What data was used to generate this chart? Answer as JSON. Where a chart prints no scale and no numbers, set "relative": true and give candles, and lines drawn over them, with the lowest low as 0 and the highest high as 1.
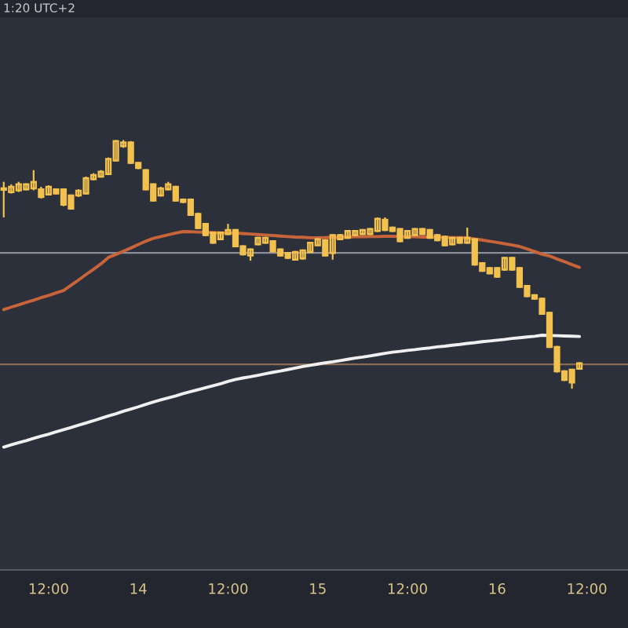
{
  "chart_data": {
    "type": "candlestick",
    "relative": true,
    "annotations": [
      "1:20 UTC+2"
    ],
    "categories": [
      null,
      null,
      null,
      null,
      null,
      null,
      "12:00",
      null,
      null,
      null,
      null,
      null,
      null,
      null,
      null,
      null,
      null,
      null,
      "14",
      null,
      null,
      null,
      null,
      null,
      null,
      null,
      null,
      null,
      null,
      null,
      "12:00",
      null,
      null,
      null,
      null,
      null,
      null,
      null,
      null,
      null,
      null,
      null,
      "15",
      null,
      null,
      null,
      null,
      null,
      null,
      null,
      null,
      null,
      null,
      null,
      "12:00",
      null,
      null,
      null,
      null,
      null,
      null,
      null,
      null,
      null,
      null,
      null,
      "16",
      null,
      null,
      null,
      null,
      null,
      null,
      null,
      null,
      null,
      null,
      null,
      "12:00",
      null,
      null,
      null,
      null,
      null
    ],
    "color": "#f2c14e",
    "ohlc": [
      [
        0.8,
        0.832,
        0.689,
        0.806
      ],
      [
        0.791,
        0.822,
        0.785,
        0.812
      ],
      [
        0.798,
        0.832,
        0.791,
        0.822
      ],
      [
        0.802,
        0.826,
        0.798,
        0.822
      ],
      [
        0.806,
        0.879,
        0.798,
        0.832
      ],
      [
        0.802,
        0.812,
        0.765,
        0.771
      ],
      [
        0.781,
        0.818,
        0.777,
        0.812
      ],
      [
        0.802,
        0.806,
        0.781,
        0.785
      ],
      [
        0.802,
        0.806,
        0.734,
        0.74
      ],
      [
        0.777,
        0.781,
        0.72,
        0.724
      ],
      [
        0.777,
        0.802,
        0.771,
        0.796
      ],
      [
        0.785,
        0.853,
        0.781,
        0.847
      ],
      [
        0.843,
        0.867,
        0.838,
        0.859
      ],
      [
        0.853,
        0.879,
        0.849,
        0.873
      ],
      [
        0.863,
        0.93,
        0.859,
        0.924
      ],
      [
        0.918,
        1.0,
        0.914,
        0.996
      ],
      [
        0.975,
        1.0,
        0.969,
        0.99
      ],
      [
        0.99,
        0.996,
        0.904,
        0.908
      ],
      [
        0.908,
        0.912,
        0.883,
        0.888
      ],
      [
        0.879,
        0.883,
        0.798,
        0.802
      ],
      [
        0.822,
        0.826,
        0.753,
        0.757
      ],
      [
        0.777,
        0.812,
        0.773,
        0.806
      ],
      [
        0.802,
        0.832,
        0.798,
        0.822
      ],
      [
        0.812,
        0.816,
        0.753,
        0.757
      ],
      [
        0.761,
        0.765,
        0.746,
        0.751
      ],
      [
        0.761,
        0.765,
        0.695,
        0.699
      ],
      [
        0.703,
        0.708,
        0.642,
        0.646
      ],
      [
        0.663,
        0.667,
        0.613,
        0.618
      ],
      [
        0.628,
        0.632,
        0.583,
        0.587
      ],
      [
        0.601,
        0.632,
        0.597,
        0.628
      ],
      [
        0.622,
        0.663,
        0.618,
        0.638
      ],
      [
        0.638,
        0.642,
        0.569,
        0.573
      ],
      [
        0.573,
        0.577,
        0.536,
        0.54
      ],
      [
        0.536,
        0.564,
        0.515,
        0.56
      ],
      [
        0.581,
        0.611,
        0.577,
        0.607
      ],
      [
        0.587,
        0.611,
        0.583,
        0.607
      ],
      [
        0.593,
        0.597,
        0.548,
        0.552
      ],
      [
        0.56,
        0.564,
        0.532,
        0.536
      ],
      [
        0.546,
        0.55,
        0.521,
        0.526
      ],
      [
        0.519,
        0.554,
        0.515,
        0.55
      ],
      [
        0.524,
        0.56,
        0.519,
        0.556
      ],
      [
        0.55,
        0.591,
        0.546,
        0.587
      ],
      [
        0.577,
        0.605,
        0.573,
        0.601
      ],
      [
        0.597,
        0.601,
        0.532,
        0.536
      ],
      [
        0.546,
        0.622,
        0.519,
        0.618
      ],
      [
        0.601,
        0.622,
        0.597,
        0.618
      ],
      [
        0.607,
        0.638,
        0.603,
        0.634
      ],
      [
        0.618,
        0.638,
        0.613,
        0.634
      ],
      [
        0.622,
        0.642,
        0.618,
        0.638
      ],
      [
        0.622,
        0.646,
        0.618,
        0.642
      ],
      [
        0.634,
        0.689,
        0.63,
        0.683
      ],
      [
        0.679,
        0.689,
        0.634,
        0.638
      ],
      [
        0.648,
        0.652,
        0.63,
        0.634
      ],
      [
        0.642,
        0.646,
        0.589,
        0.593
      ],
      [
        0.607,
        0.638,
        0.603,
        0.634
      ],
      [
        0.618,
        0.646,
        0.613,
        0.642
      ],
      [
        0.642,
        0.646,
        0.618,
        0.622
      ],
      [
        0.638,
        0.642,
        0.603,
        0.607
      ],
      [
        0.618,
        0.622,
        0.593,
        0.597
      ],
      [
        0.611,
        0.616,
        0.573,
        0.577
      ],
      [
        0.581,
        0.611,
        0.577,
        0.607
      ],
      [
        0.607,
        0.611,
        0.583,
        0.587
      ],
      [
        0.587,
        0.648,
        0.583,
        0.607
      ],
      [
        0.601,
        0.605,
        0.495,
        0.499
      ],
      [
        0.505,
        0.509,
        0.47,
        0.474
      ],
      [
        0.485,
        0.489,
        0.46,
        0.464
      ],
      [
        0.485,
        0.489,
        0.446,
        0.45
      ],
      [
        0.479,
        0.53,
        0.474,
        0.526
      ],
      [
        0.526,
        0.53,
        0.474,
        0.479
      ],
      [
        0.485,
        0.489,
        0.405,
        0.409
      ],
      [
        0.413,
        0.417,
        0.368,
        0.372
      ],
      [
        0.376,
        0.38,
        0.358,
        0.362
      ],
      [
        0.362,
        0.366,
        0.297,
        0.301
      ],
      [
        0.305,
        0.309,
        0.164,
        0.168
      ],
      [
        0.168,
        0.172,
        0.065,
        0.07
      ],
      [
        0.07,
        0.074,
        0.031,
        0.035
      ],
      [
        0.076,
        0.08,
        0.0,
        0.025
      ],
      [
        0.08,
        0.106,
        0.076,
        0.102
      ],
      null,
      null,
      null,
      null,
      null,
      null
    ],
    "series": [
      {
        "type": "line",
        "color": "#c8643a",
        "values": [
          0.318,
          0.328,
          0.337,
          0.347,
          0.356,
          0.366,
          0.375,
          0.385,
          0.395,
          0.416,
          0.437,
          0.459,
          0.48,
          0.502,
          0.528,
          0.54,
          0.553,
          0.566,
          0.58,
          0.593,
          0.605,
          0.612,
          0.619,
          0.626,
          0.632,
          0.631,
          0.63,
          0.629,
          0.628,
          0.627,
          0.626,
          0.626,
          0.624,
          0.622,
          0.62,
          0.618,
          0.616,
          0.614,
          0.612,
          0.61,
          0.609,
          0.607,
          0.607,
          0.608,
          0.609,
          0.609,
          0.61,
          0.611,
          0.611,
          0.612,
          0.612,
          0.613,
          0.613,
          0.612,
          0.612,
          0.611,
          0.61,
          0.61,
          0.609,
          0.609,
          0.608,
          0.608,
          0.607,
          0.602,
          0.598,
          0.593,
          0.588,
          0.583,
          0.578,
          0.572,
          0.562,
          0.552,
          0.541,
          0.534,
          0.522,
          0.511,
          0.499,
          0.488,
          null,
          null,
          null,
          null,
          null,
          null
        ]
      },
      {
        "type": "line",
        "color": "#f0f0f0",
        "values": [
          -0.235,
          -0.226,
          -0.217,
          -0.209,
          -0.2,
          -0.191,
          -0.183,
          -0.174,
          -0.165,
          -0.156,
          -0.147,
          -0.138,
          -0.129,
          -0.119,
          -0.11,
          -0.101,
          -0.091,
          -0.082,
          -0.073,
          -0.063,
          -0.054,
          -0.045,
          -0.037,
          -0.029,
          -0.02,
          -0.012,
          -0.004,
          0.004,
          0.012,
          0.02,
          0.029,
          0.037,
          0.043,
          0.048,
          0.054,
          0.06,
          0.066,
          0.071,
          0.077,
          0.083,
          0.089,
          0.094,
          0.099,
          0.104,
          0.108,
          0.113,
          0.118,
          0.123,
          0.127,
          0.132,
          0.137,
          0.142,
          0.147,
          0.15,
          0.154,
          0.157,
          0.161,
          0.164,
          0.168,
          0.171,
          0.175,
          0.178,
          0.182,
          0.185,
          0.189,
          0.192,
          0.195,
          0.198,
          0.202,
          0.205,
          0.208,
          0.211,
          0.215,
          0.214,
          0.213,
          0.212,
          0.211,
          0.21,
          null,
          null,
          null,
          null,
          null,
          null
        ]
      }
    ],
    "ref_lines": [
      {
        "axis": "y",
        "value": 0.546,
        "color": "#8c8f99"
      },
      {
        "axis": "y",
        "value": 0.098,
        "color": "#8a6a50"
      }
    ]
  }
}
